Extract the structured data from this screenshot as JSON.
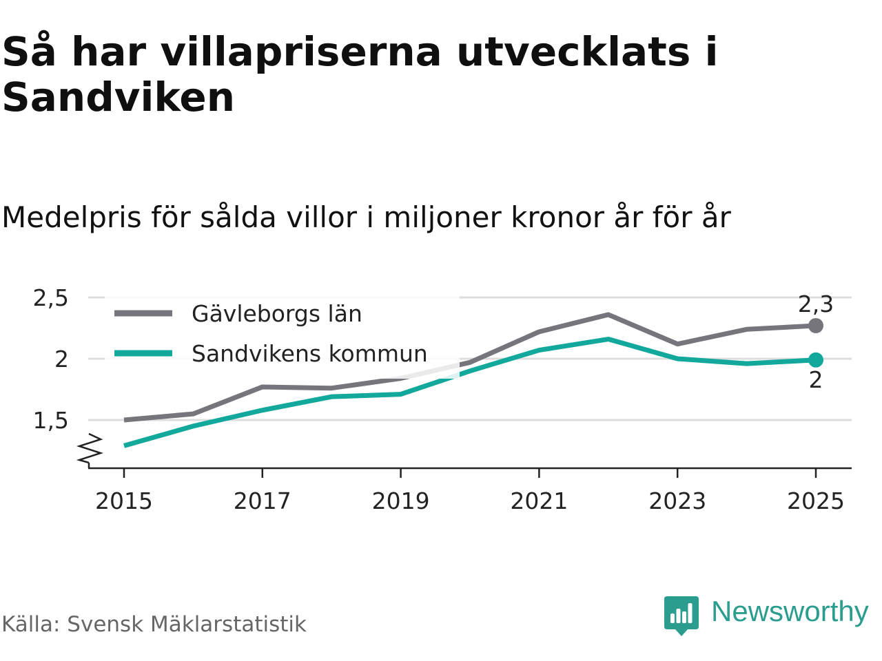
{
  "header": {
    "title": "Så har villapriserna utvecklats i Sandviken",
    "subtitle": "Medelpris för sålda villor i miljoner kronor år för år"
  },
  "footer": {
    "source": "Källa: Svensk Mäklarstatistik",
    "brand": "Newsworthy"
  },
  "colors": {
    "county": "#76757c",
    "municipality": "#12a89b",
    "grid": "#dddddd",
    "axis": "#222222",
    "brand": "#2a9d8f"
  },
  "chart_data": {
    "type": "line",
    "title": "Så har villapriserna utvecklats i Sandviken",
    "subtitle": "Medelpris för sålda villor i miljoner kronor år för år",
    "xlabel": "",
    "ylabel": "",
    "x": [
      2015,
      2016,
      2017,
      2018,
      2019,
      2020,
      2021,
      2022,
      2023,
      2024,
      2025
    ],
    "xticks": [
      2015,
      2017,
      2019,
      2021,
      2023,
      2025
    ],
    "xtick_labels": [
      "2015",
      "2017",
      "2019",
      "2021",
      "2023",
      "2025"
    ],
    "yticks": [
      1.5,
      2,
      2.5
    ],
    "ytick_labels": [
      "1,5",
      "2",
      "2,5"
    ],
    "ylim": [
      1.1,
      2.6
    ],
    "axis_break": true,
    "grid": true,
    "legend_position": "top-left",
    "series": [
      {
        "name": "Gävleborgs län",
        "color": "#76757c",
        "values": [
          1.5,
          1.55,
          1.77,
          1.76,
          1.84,
          1.97,
          2.22,
          2.36,
          2.12,
          2.24,
          2.27
        ],
        "end_label": "2,3",
        "end_label_position": "above"
      },
      {
        "name": "Sandvikens kommun",
        "color": "#12a89b",
        "values": [
          1.29,
          1.45,
          1.58,
          1.69,
          1.71,
          1.9,
          2.07,
          2.16,
          2.0,
          1.96,
          1.99
        ],
        "end_label": "2",
        "end_label_position": "below"
      }
    ]
  }
}
